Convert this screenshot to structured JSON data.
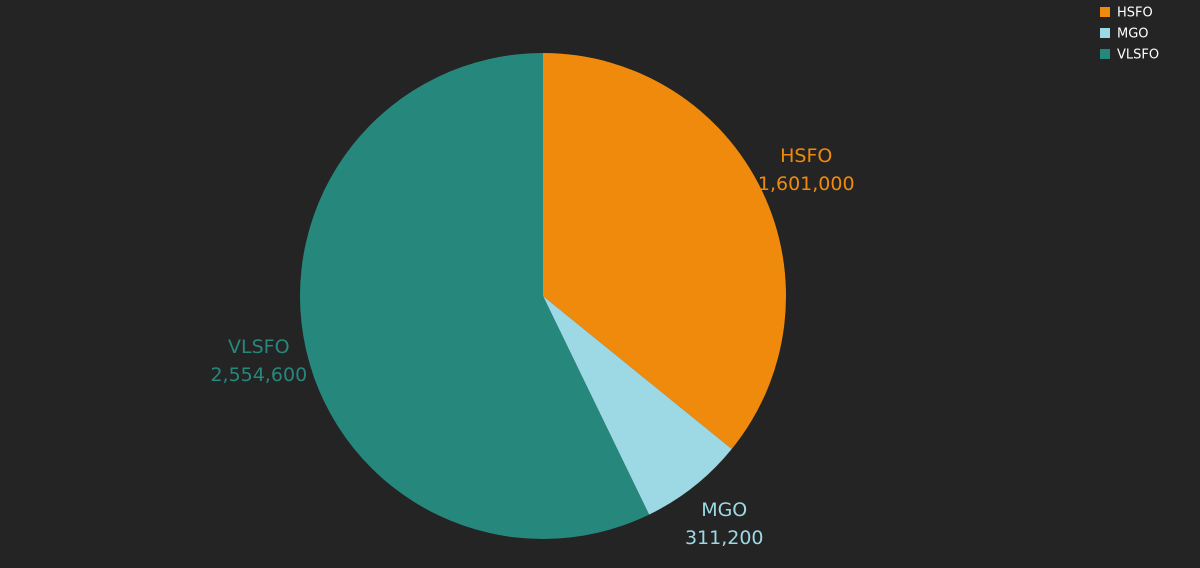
{
  "chart_data": {
    "type": "pie",
    "categories": [
      "HSFO",
      "MGO",
      "VLSFO"
    ],
    "values": [
      1601000,
      311200,
      2554600
    ],
    "value_labels": [
      "1,601,000",
      "311,200",
      "2,554,600"
    ],
    "colors": [
      "#f08a0c",
      "#9dd9e4",
      "#26887c"
    ],
    "legend": "top-right"
  }
}
